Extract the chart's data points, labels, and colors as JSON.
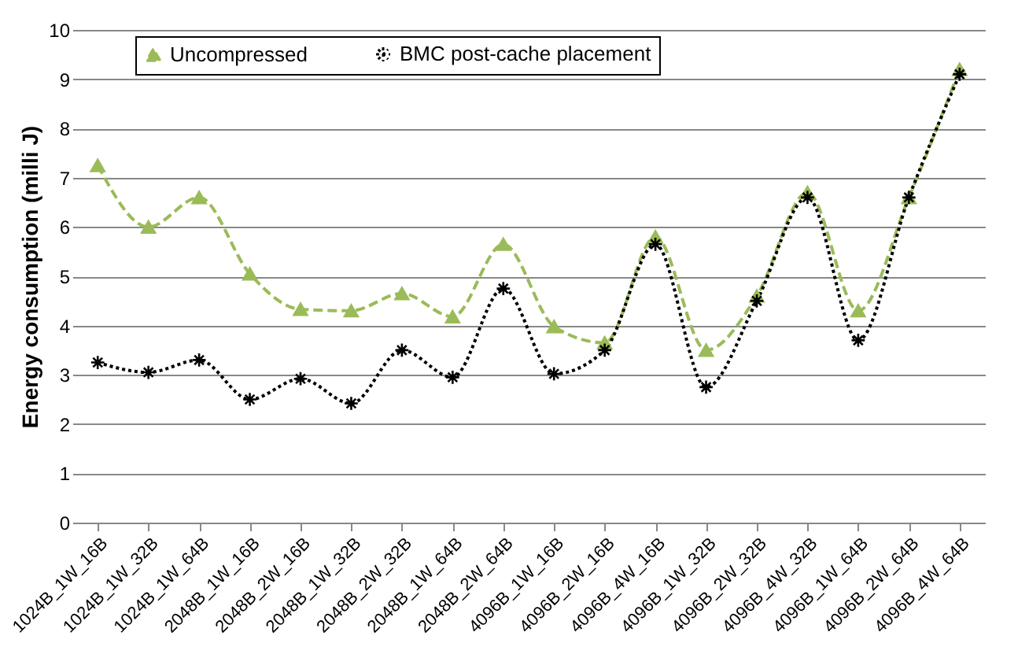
{
  "chart_data": {
    "type": "line",
    "ylabel": "Energy consumption (milli J)",
    "categories": [
      "1024B_1W_16B",
      "1024B_1W_32B",
      "1024B_1W_64B",
      "2048B_1W_16B",
      "2048B_2W_16B",
      "2048B_1W_32B",
      "2048B_2W_32B",
      "2048B_1W_64B",
      "2048B_2W_64B",
      "4096B_1W_16B",
      "4096B_2W_16B",
      "4096B_4W_16B",
      "4096B_1W_32B",
      "4096B_2W_32B",
      "4096B_4W_32B",
      "4096B_1W_64B",
      "4096B_2W_64B",
      "4096B_4W_64B"
    ],
    "series": [
      {
        "name": "Uncompressed",
        "color": "#9bbb59",
        "marker": "triangle",
        "line_style": "dashed",
        "values": [
          7.25,
          6.0,
          6.6,
          5.05,
          4.33,
          4.3,
          4.65,
          4.18,
          5.65,
          3.98,
          3.65,
          5.8,
          3.5,
          4.6,
          6.7,
          4.3,
          6.6,
          9.2
        ]
      },
      {
        "name": "BMC post-cache placement",
        "color": "#000000",
        "marker": "cross",
        "line_style": "dotted",
        "values": [
          3.25,
          3.05,
          3.3,
          2.5,
          2.92,
          2.42,
          3.5,
          2.95,
          4.75,
          3.02,
          3.5,
          5.65,
          2.75,
          4.5,
          6.6,
          3.7,
          6.6,
          9.1
        ]
      }
    ],
    "ylim": [
      0,
      10
    ],
    "yticks": [
      0,
      1,
      2,
      3,
      4,
      5,
      6,
      7,
      8,
      9,
      10
    ],
    "grid": "y",
    "legend": "top"
  }
}
